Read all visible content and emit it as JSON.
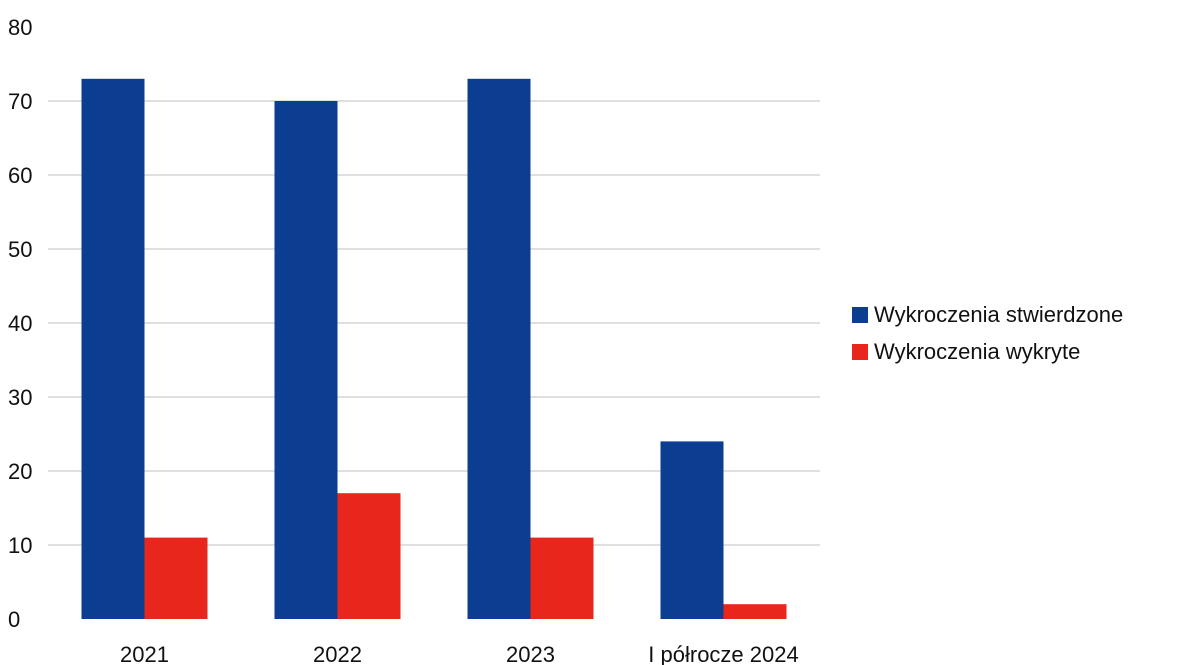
{
  "chart_data": {
    "type": "bar",
    "title": "",
    "xlabel": "",
    "ylabel": "",
    "categories": [
      "2021",
      "2022",
      "2023",
      "I półrocze 2024"
    ],
    "series": [
      {
        "name": "Wykroczenia stwierdzone",
        "color": "#0b3d91",
        "values": [
          73,
          70,
          73,
          24
        ]
      },
      {
        "name": "Wykroczenia wykryte",
        "color": "#e8261c",
        "values": [
          11,
          17,
          11,
          2
        ]
      }
    ],
    "ylim": [
      0,
      80
    ],
    "yticks": [
      0,
      10,
      20,
      30,
      40,
      50,
      60,
      70,
      80
    ],
    "grid": true,
    "legend_position": "right"
  }
}
